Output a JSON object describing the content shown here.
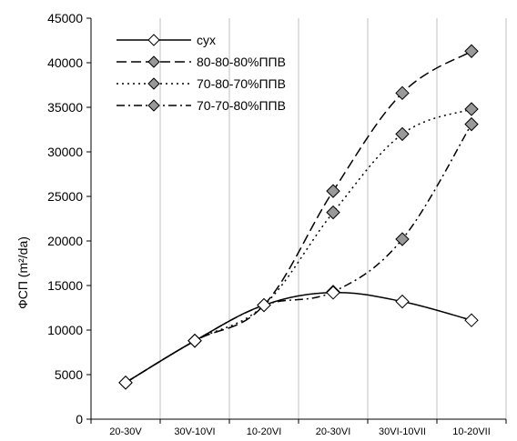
{
  "chart_data": {
    "type": "line",
    "ylabel": "ФСП (m²/da)",
    "ylim": [
      0,
      45000
    ],
    "ytick_step": 5000,
    "categories": [
      "20-30V",
      "30V-10VI",
      "10-20VI",
      "20-30VI",
      "30VI-10VII",
      "10-20VII"
    ],
    "grid": "vertical",
    "legend_position": "top-left",
    "series": [
      {
        "name": "сух",
        "marker": "diamond-open",
        "dash": "solid",
        "values": [
          4100,
          8800,
          12800,
          14200,
          13200,
          11100
        ]
      },
      {
        "name": "80-80-80%ППВ",
        "marker": "diamond-filled",
        "dash": "long-dash",
        "values": [
          4100,
          8800,
          12800,
          25600,
          36600,
          41300
        ]
      },
      {
        "name": "70-80-70%ППВ",
        "marker": "diamond-filled",
        "dash": "dot",
        "values": [
          4100,
          8800,
          12800,
          23200,
          32000,
          34800
        ]
      },
      {
        "name": "70-70-80%ППВ",
        "marker": "diamond-filled",
        "dash": "dash-dot",
        "values": [
          4100,
          8800,
          12800,
          14300,
          20200,
          33100
        ]
      }
    ]
  },
  "colors": {
    "line": "#000000",
    "marker_fill": "#999999",
    "marker_open": "#ffffff",
    "grid": "#c0c0c0"
  }
}
